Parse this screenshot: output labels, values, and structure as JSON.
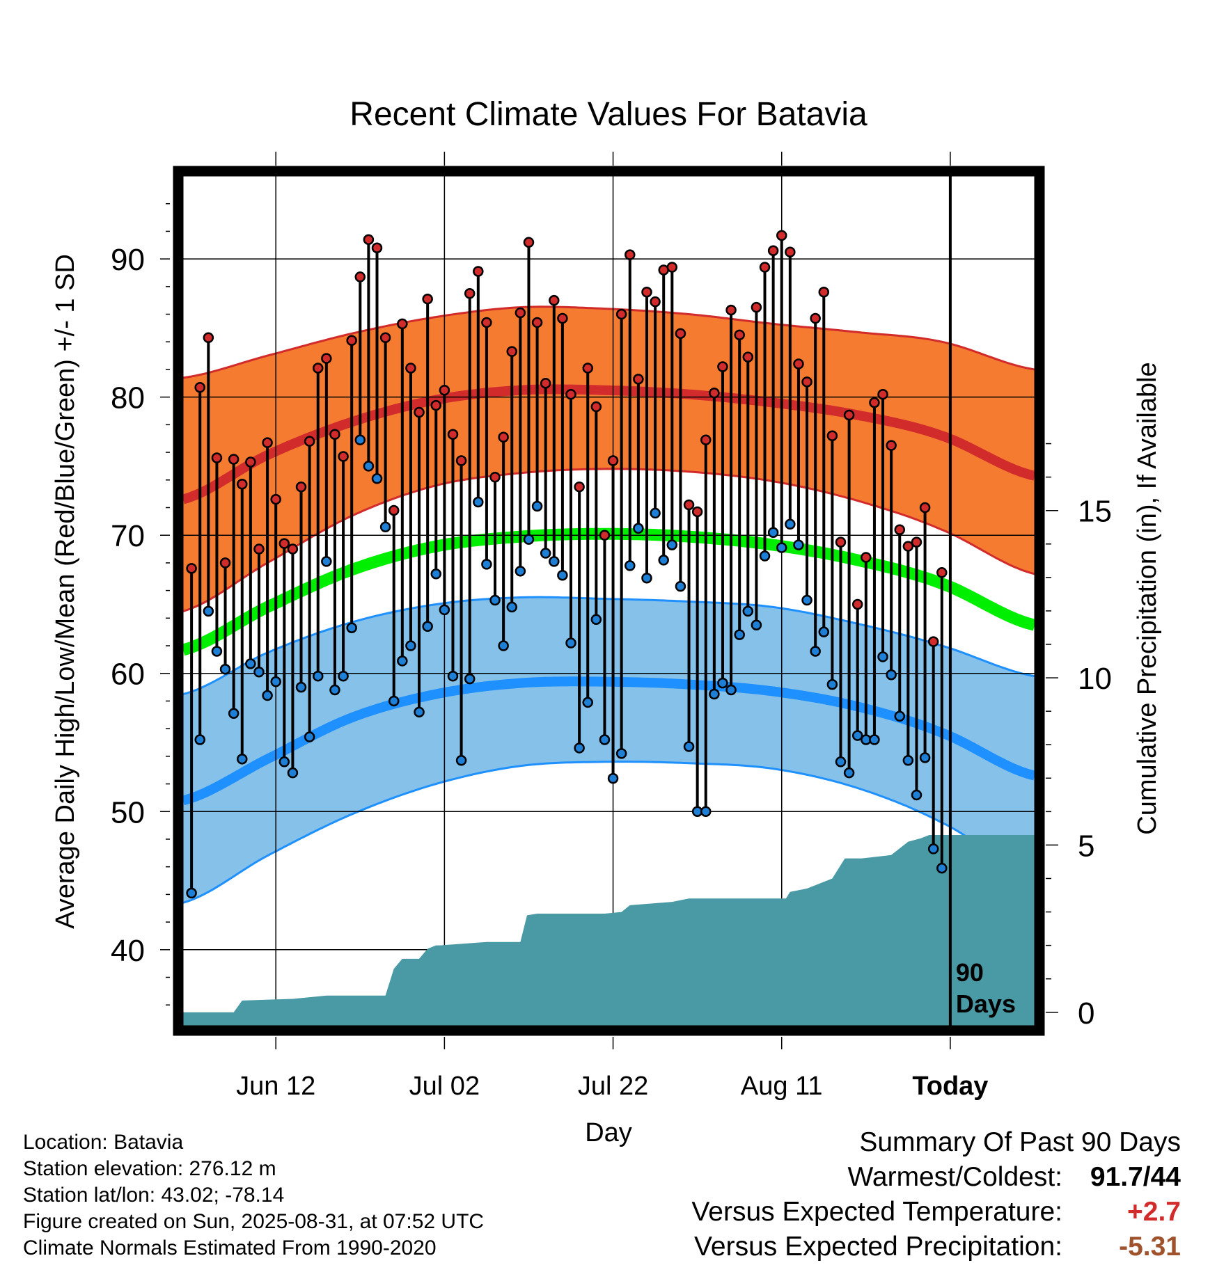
{
  "chart_data": {
    "type": "line",
    "title": "Recent Climate Values For Batavia",
    "xlabel": "Day",
    "ylabel": "Average Daily High/Low/Mean (Red/Blue/Green) +/- 1 SD",
    "y2label": "Cumulative Precipitation (in), If Available",
    "xlim": [
      0,
      101
    ],
    "ylim": [
      34.5,
      96
    ],
    "y2lim": [
      -0.4,
      25
    ],
    "x_tick_labels": [
      {
        "day": 11,
        "label": "Jun 12"
      },
      {
        "day": 31,
        "label": "Jul 02"
      },
      {
        "day": 51,
        "label": "Jul 22"
      },
      {
        "day": 71,
        "label": "Aug 11"
      },
      {
        "day": 91,
        "label": "Today"
      }
    ],
    "y_ticks": [
      40,
      50,
      60,
      70,
      80,
      90
    ],
    "y2_ticks": [
      0,
      5,
      10,
      15
    ],
    "today_line_day": 91,
    "today_annotation": [
      "90",
      "Days"
    ],
    "colors": {
      "high_band": "#f47b30",
      "high_line": "#d22b2b",
      "low_band": "#85c1e9",
      "low_line": "#1e90ff",
      "mean_line": "#00ee00",
      "precip": "#4a9aa5",
      "obs_high_marker": "#d22b2b",
      "obs_low_marker": "#1e7fd6"
    },
    "normals_days": [
      0,
      10,
      20,
      30,
      40,
      50,
      60,
      70,
      80,
      90,
      101
    ],
    "normal_high": [
      72.6,
      75.8,
      78.2,
      79.8,
      80.5,
      80.5,
      80.2,
      79.6,
      78.7,
      77.2,
      74.3
    ],
    "normal_high_upper": [
      81.4,
      83.0,
      84.6,
      85.8,
      86.5,
      86.4,
      86.0,
      85.3,
      84.7,
      84.0,
      82.0
    ],
    "normal_high_lower": [
      64.5,
      68.0,
      71.4,
      73.6,
      74.5,
      74.8,
      74.6,
      73.9,
      72.5,
      70.4,
      67.2
    ],
    "normal_mean": [
      61.7,
      64.8,
      67.5,
      69.2,
      69.9,
      70.1,
      69.9,
      69.3,
      68.2,
      66.5,
      63.5
    ],
    "normal_low": [
      50.8,
      53.8,
      56.8,
      58.5,
      59.3,
      59.4,
      59.2,
      58.7,
      57.6,
      55.7,
      52.6
    ],
    "normal_low_upper": [
      58.5,
      61.5,
      63.7,
      65.0,
      65.5,
      65.4,
      65.2,
      64.8,
      63.6,
      62.0,
      59.8
    ],
    "normal_low_lower": [
      43.4,
      46.8,
      49.8,
      52.0,
      53.3,
      53.6,
      53.5,
      53.1,
      51.7,
      49.2,
      45.4
    ],
    "observed_high": [
      67.6,
      80.7,
      84.3,
      75.6,
      68.0,
      75.5,
      73.7,
      75.3,
      69.0,
      76.7,
      72.6,
      69.4,
      69.0,
      73.5,
      76.8,
      82.1,
      82.8,
      77.3,
      75.7,
      84.1,
      88.7,
      91.4,
      90.8,
      84.3,
      71.8,
      85.3,
      82.1,
      78.9,
      87.1,
      79.4,
      80.5,
      77.3,
      75.4,
      87.5,
      89.1,
      85.4,
      74.2,
      77.1,
      83.3,
      86.1,
      91.2,
      85.4,
      81.0,
      87.0,
      85.7,
      80.2,
      73.5,
      82.1,
      79.3,
      70.0,
      75.4,
      86.0,
      90.3,
      81.3,
      87.6,
      86.9,
      89.2,
      89.4,
      84.6,
      72.2,
      71.7,
      76.9,
      80.3,
      82.2,
      86.3,
      84.5,
      82.9,
      86.5,
      89.4,
      90.6,
      91.7,
      90.5,
      82.4,
      81.1,
      85.7,
      87.6,
      77.2,
      69.5,
      78.7,
      65.0,
      68.4,
      79.6,
      80.2,
      76.5,
      70.4,
      69.2,
      69.5,
      72.0,
      62.3,
      67.3
    ],
    "observed_low": [
      44.1,
      55.2,
      64.5,
      61.6,
      60.3,
      57.1,
      53.8,
      60.7,
      60.1,
      58.4,
      59.4,
      53.6,
      52.8,
      59.0,
      55.4,
      59.8,
      68.1,
      58.8,
      59.8,
      63.3,
      76.9,
      75.0,
      74.1,
      70.6,
      58.0,
      60.9,
      62.0,
      57.2,
      63.4,
      67.2,
      64.6,
      59.8,
      53.7,
      59.6,
      72.4,
      67.9,
      65.3,
      62.0,
      64.8,
      67.4,
      69.7,
      72.1,
      68.7,
      68.1,
      67.1,
      62.2,
      54.6,
      57.9,
      63.9,
      55.2,
      52.4,
      54.2,
      67.8,
      70.5,
      66.9,
      71.6,
      68.2,
      69.3,
      66.3,
      54.7,
      50.0,
      50.0,
      58.5,
      59.3,
      58.8,
      62.8,
      64.5,
      63.5,
      68.5,
      70.2,
      69.1,
      70.8,
      69.3,
      65.3,
      61.6,
      63.0,
      59.2,
      53.6,
      52.8,
      55.5,
      55.2,
      55.2,
      61.2,
      59.9,
      56.9,
      53.7,
      51.2,
      53.9,
      47.3,
      45.9
    ],
    "precip_days": [
      0,
      6,
      7,
      13,
      17,
      18,
      24,
      25,
      26,
      28,
      29,
      30,
      30.5,
      36,
      40,
      40.8,
      42,
      50,
      52,
      53,
      58,
      60,
      65,
      70,
      71.5,
      72,
      74,
      75,
      77,
      78.5,
      80.5,
      84,
      86,
      87.5,
      88.5,
      101
    ],
    "precip_cum": [
      0,
      0,
      0.35,
      0.4,
      0.5,
      0.5,
      0.5,
      1.3,
      1.6,
      1.6,
      1.9,
      2.0,
      2.0,
      2.1,
      2.1,
      2.9,
      2.95,
      2.95,
      3.0,
      3.2,
      3.3,
      3.4,
      3.4,
      3.4,
      3.4,
      3.6,
      3.7,
      3.8,
      4.0,
      4.6,
      4.6,
      4.7,
      5.1,
      5.2,
      5.3,
      5.3
    ]
  },
  "meta": {
    "location": "Location: Batavia",
    "elevation": "Station elevation: 276.12 m",
    "latlon": "Station lat/lon: 43.02; -78.14",
    "created": "Figure created on Sun, 2025-08-31, at 07:52 UTC",
    "normals": "Climate Normals Estimated From 1990-2020"
  },
  "summary": {
    "title": "Summary Of Past 90 Days",
    "warm_cold_label": "Warmest/Coldest:",
    "warm_cold_value": "91.7/44",
    "temp_label": "Versus Expected Temperature:",
    "temp_value": "+2.7",
    "temp_color": "#d22b2b",
    "precip_label": "Versus Expected Precipitation:",
    "precip_value": "-5.31",
    "precip_color": "#a0522d"
  }
}
